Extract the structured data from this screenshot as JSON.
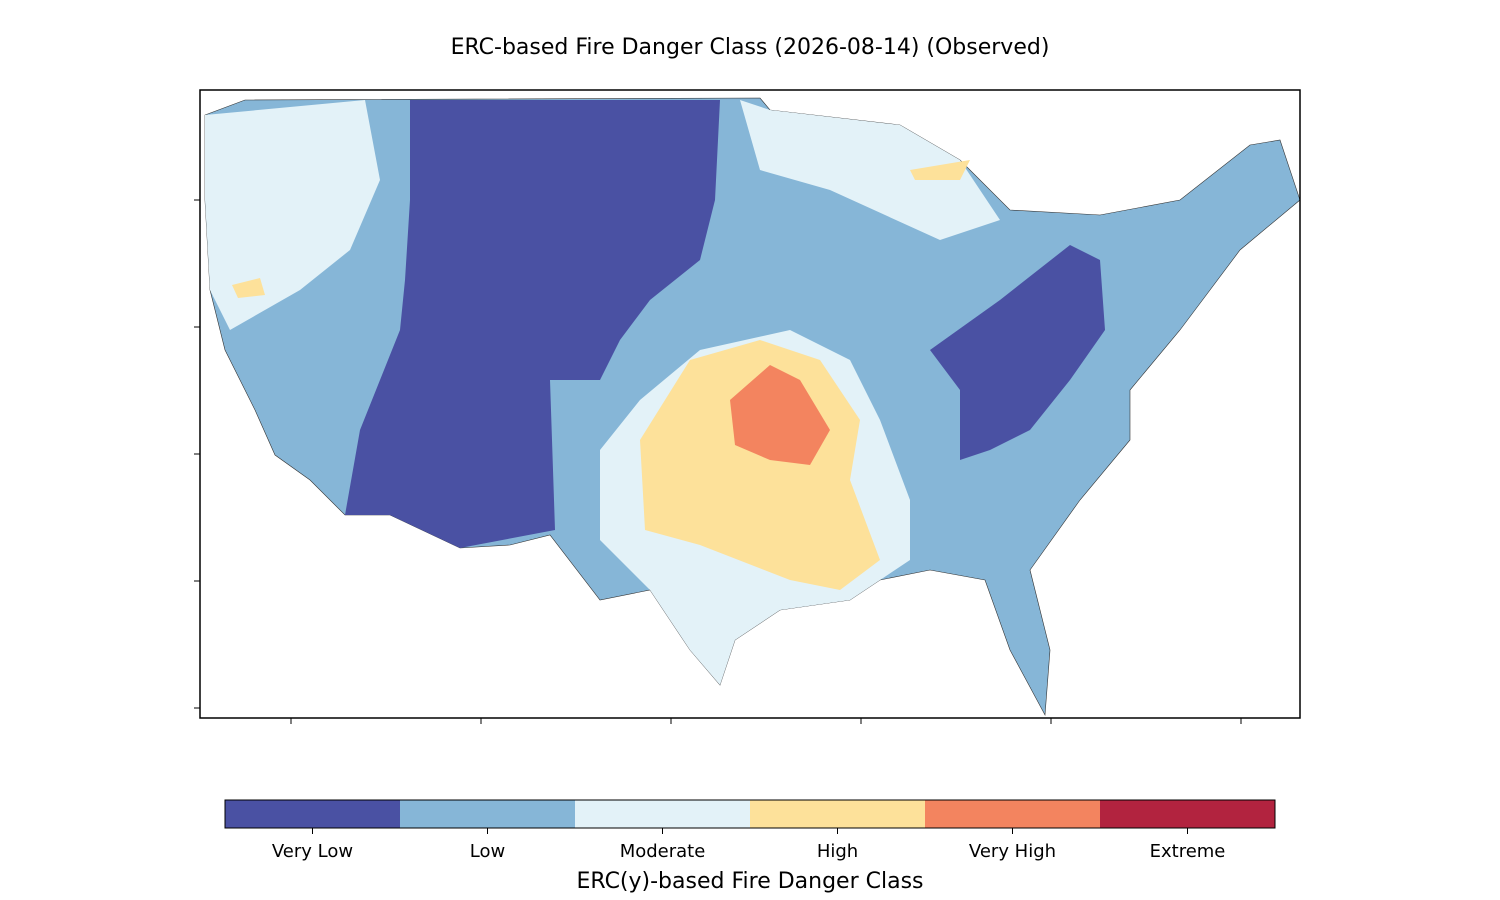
{
  "title": "ERC-based Fire Danger Class (2026-08-14) (Observed)",
  "colorbar": {
    "label": "ERC(y)-based Fire Danger Class",
    "classes": [
      {
        "name": "Very Low",
        "color": "#4a51a3"
      },
      {
        "name": "Low",
        "color": "#86b6d7"
      },
      {
        "name": "Moderate",
        "color": "#e3f2f8"
      },
      {
        "name": "High",
        "color": "#fde19a"
      },
      {
        "name": "Very High",
        "color": "#f3845f"
      },
      {
        "name": "Extreme",
        "color": "#b2233f"
      }
    ]
  }
}
